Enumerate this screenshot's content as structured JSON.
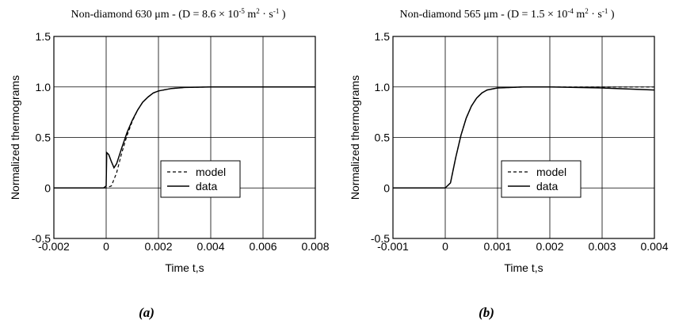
{
  "chart_data": [
    {
      "type": "line",
      "panel_label": "(a)",
      "title": {
        "pre": "Non-diamond 630 μm - (D = 8.6 × 10",
        "exp": "-5",
        "mid": " m",
        "exp2": "2",
        "mid2": " · s",
        "exp3": "-1",
        "post": " )"
      },
      "xlabel": "Time t,s",
      "ylabel": "Normalized thermograms",
      "xlim": [
        -0.002,
        0.008
      ],
      "ylim": [
        -0.5,
        1.5
      ],
      "xticks": [
        -0.002,
        0,
        0.002,
        0.004,
        0.006,
        0.008
      ],
      "xtick_labels": [
        "-0.002",
        "0",
        "0.002",
        "0.004",
        "0.006",
        "0.008"
      ],
      "yticks": [
        -0.5,
        0,
        0.5,
        1.0,
        1.5
      ],
      "ytick_labels": [
        "-0.5",
        "0",
        "0.5",
        "1.0",
        "1.5"
      ],
      "grid": true,
      "legend_position": "lower-right",
      "series": [
        {
          "name": "model",
          "style": "dashed",
          "x": [
            -0.002,
            0,
            0.0002,
            0.0004,
            0.0006,
            0.0008,
            0.001,
            0.0012,
            0.0014,
            0.0016,
            0.0018,
            0.002,
            0.0025,
            0.003,
            0.004,
            0.005,
            0.006,
            0.007,
            0.008
          ],
          "y": [
            0,
            0,
            0.02,
            0.15,
            0.35,
            0.52,
            0.66,
            0.77,
            0.85,
            0.9,
            0.94,
            0.96,
            0.985,
            0.995,
            1.0,
            1.0,
            1.0,
            1.0,
            1.0
          ]
        },
        {
          "name": "data",
          "style": "solid",
          "x": [
            -0.002,
            -0.001,
            -0.0001,
            0,
            2e-05,
            0.0001,
            0.0002,
            0.0003,
            0.0004,
            0.0006,
            0.0008,
            0.001,
            0.0012,
            0.0014,
            0.0016,
            0.0018,
            0.002,
            0.0025,
            0.003,
            0.004,
            0.005,
            0.006,
            0.007,
            0.008
          ],
          "y": [
            0,
            0,
            0,
            0.02,
            0.35,
            0.33,
            0.26,
            0.2,
            0.24,
            0.4,
            0.55,
            0.67,
            0.77,
            0.85,
            0.9,
            0.94,
            0.96,
            0.985,
            0.995,
            1.0,
            1.0,
            1.0,
            1.0,
            1.0
          ]
        }
      ]
    },
    {
      "type": "line",
      "panel_label": "(b)",
      "title": {
        "pre": "Non-diamond 565 μm - (D = 1.5 × 10",
        "exp": "-4",
        "mid": " m",
        "exp2": "2",
        "mid2": " · s",
        "exp3": "-1",
        "post": " )"
      },
      "xlabel": "Time t,s",
      "ylabel": "Normalized thermograms",
      "xlim": [
        -0.001,
        0.004
      ],
      "ylim": [
        -0.5,
        1.5
      ],
      "xticks": [
        -0.001,
        0,
        0.001,
        0.002,
        0.003,
        0.004
      ],
      "xtick_labels": [
        "-0.001",
        "0",
        "0.001",
        "0.002",
        "0.003",
        "0.004"
      ],
      "yticks": [
        -0.5,
        0,
        0.5,
        1.0,
        1.5
      ],
      "ytick_labels": [
        "-0.5",
        "0",
        "0.5",
        "1.0",
        "1.5"
      ],
      "grid": true,
      "legend_position": "lower-right",
      "series": [
        {
          "name": "model",
          "style": "dashed",
          "x": [
            -0.001,
            0,
            0.0001,
            0.0002,
            0.0003,
            0.0004,
            0.0005,
            0.0006,
            0.0007,
            0.0008,
            0.001,
            0.0015,
            0.002,
            0.003,
            0.004
          ],
          "y": [
            0,
            0,
            0.05,
            0.3,
            0.52,
            0.69,
            0.81,
            0.89,
            0.94,
            0.97,
            0.99,
            1.0,
            1.0,
            1.0,
            1.0
          ]
        },
        {
          "name": "data",
          "style": "solid",
          "x": [
            -0.001,
            -0.0005,
            0,
            0.0001,
            0.0002,
            0.0003,
            0.0004,
            0.0005,
            0.0006,
            0.0007,
            0.0008,
            0.001,
            0.0015,
            0.002,
            0.003,
            0.004
          ],
          "y": [
            0,
            0,
            0,
            0.05,
            0.3,
            0.52,
            0.69,
            0.81,
            0.89,
            0.94,
            0.97,
            0.99,
            1.0,
            1.0,
            0.99,
            0.97
          ]
        }
      ]
    }
  ]
}
